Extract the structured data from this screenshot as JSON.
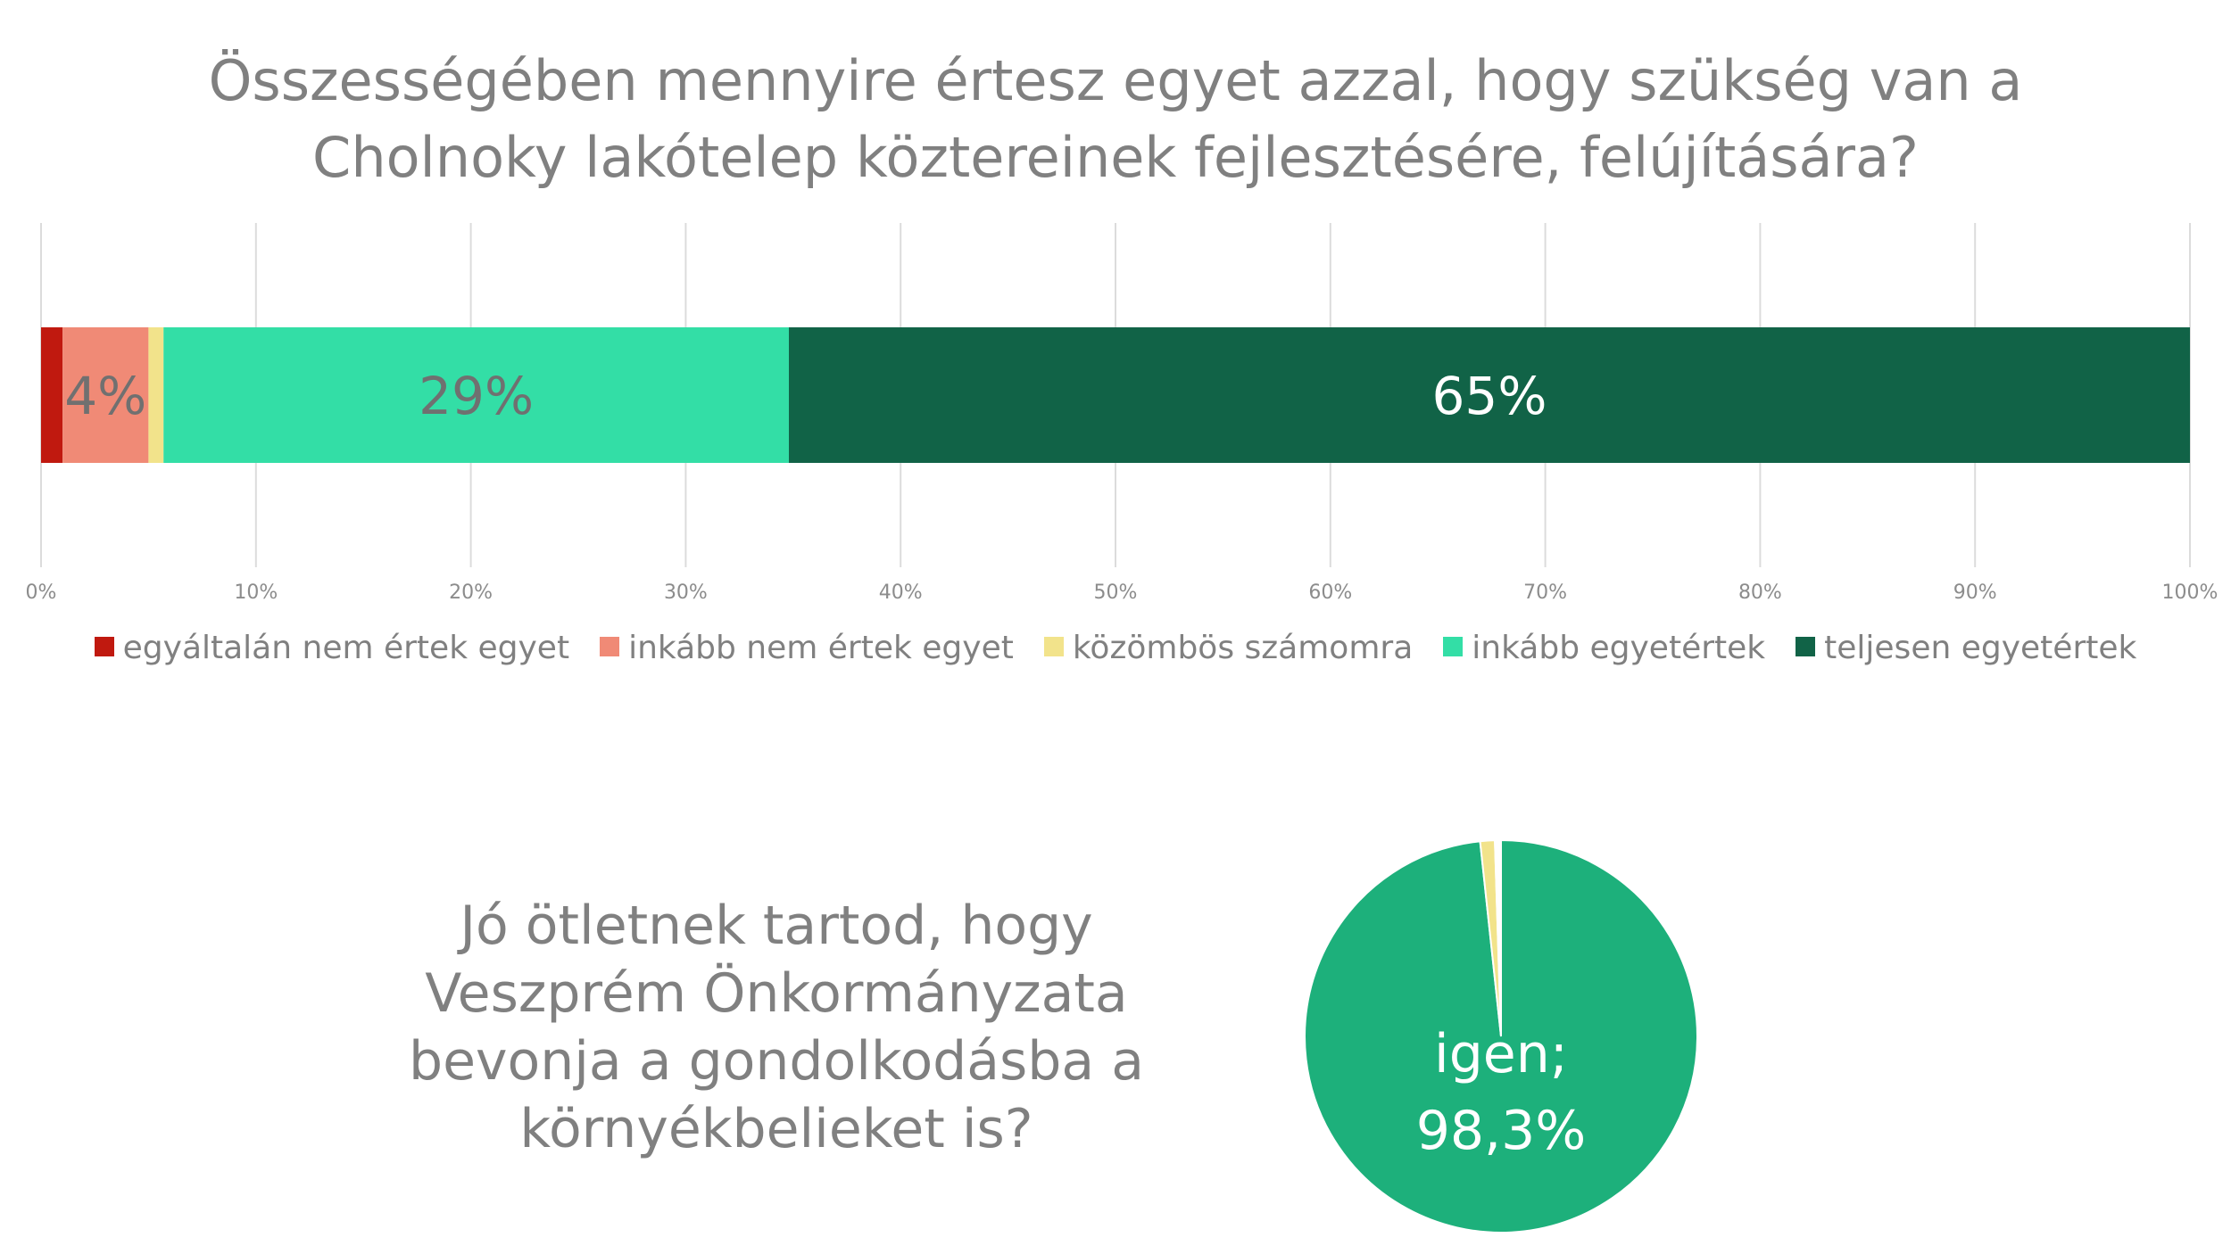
{
  "chart_data": [
    {
      "type": "bar",
      "orientation": "horizontal",
      "stacked": true,
      "title_lines": [
        "Összességében mennyire értesz egyet azzal, hogy szükség van a",
        "Cholnoky lakótelep köztereinek fejlesztésére, felújítására?"
      ],
      "series": [
        {
          "name": "egyáltalán nem értek egyet",
          "value": 1,
          "color": "#c0190f",
          "label": ""
        },
        {
          "name": "inkább nem értek egyet",
          "value": 4,
          "color": "#f08a76",
          "label": "4%"
        },
        {
          "name": "közömbös számomra",
          "value": 0.7,
          "color": "#f2e38b",
          "label": ""
        },
        {
          "name": "inkább egyetértek",
          "value": 29.1,
          "color": "#33dea6",
          "label": "29%"
        },
        {
          "name": "teljesen egyetértek",
          "value": 65.2,
          "color": "#116347",
          "label": "65%"
        }
      ],
      "xlim": [
        0,
        100
      ],
      "ticks": [
        "0%",
        "10%",
        "20%",
        "30%",
        "40%",
        "50%",
        "60%",
        "70%",
        "80%",
        "90%",
        "100%"
      ],
      "grid": true,
      "legend_position": "bottom"
    },
    {
      "type": "pie",
      "title_lines": [
        "Jó ötletnek tartod, hogy",
        "Veszprém Önkormányzata",
        "bevonja a gondolkodásba a",
        "környékbelieket is?"
      ],
      "slices": [
        {
          "name": "igen",
          "value": 98.3,
          "color": "#1db07b",
          "label_lines": [
            "igen;",
            "98,3%"
          ]
        },
        {
          "name": "",
          "value": 1.2,
          "color": "#f2e38b",
          "label_lines": []
        },
        {
          "name": "",
          "value": 0.5,
          "color": "#ffffff",
          "label_lines": []
        }
      ]
    }
  ]
}
